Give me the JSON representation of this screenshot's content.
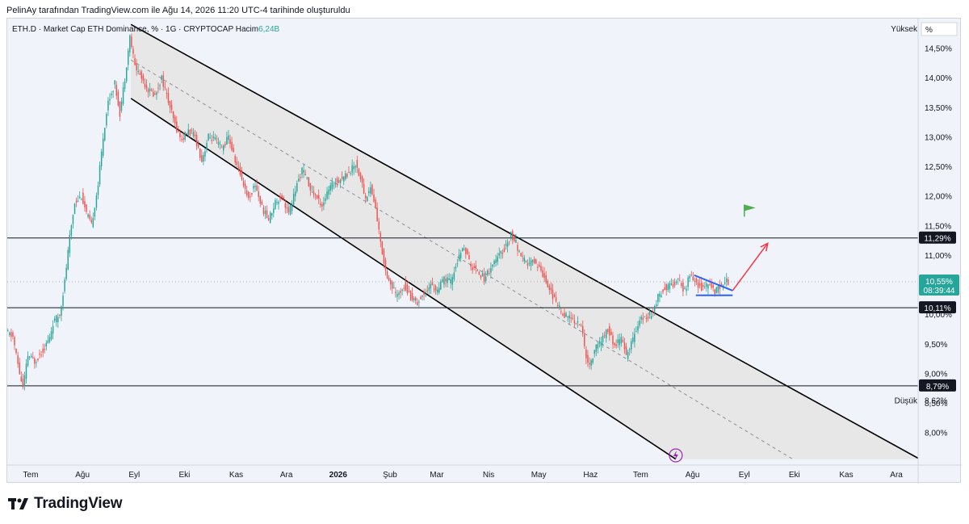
{
  "caption": "PelinAy tarafından TradingView.com ile Ağu 14, 2026 11:20 UTC-4 tarihinde oluşturuldu",
  "chart_data": {
    "type": "candlestick",
    "title": "ETH.D · Market Cap ETH Dominance, % · 1G · CRYPTOCAP",
    "volume_label": "Hacim",
    "volume_value": "6,24B",
    "scale_label": "Yüksek",
    "scale_unit": "%",
    "ylim": [
      7.45,
      15.0
    ],
    "y_ticks": [
      {
        "v": 14.5,
        "label": "14,50%"
      },
      {
        "v": 14.0,
        "label": "14,00%"
      },
      {
        "v": 13.5,
        "label": "13,50%"
      },
      {
        "v": 13.0,
        "label": "13,00%"
      },
      {
        "v": 12.5,
        "label": "12,50%"
      },
      {
        "v": 12.0,
        "label": "12,00%"
      },
      {
        "v": 11.5,
        "label": "11,50%"
      },
      {
        "v": 11.0,
        "label": "11,00%"
      },
      {
        "v": 10.0,
        "label": "10,00%"
      },
      {
        "v": 9.5,
        "label": "9,50%"
      },
      {
        "v": 9.0,
        "label": "9,00%"
      },
      {
        "v": 8.5,
        "label": "8,50%"
      },
      {
        "v": 8.0,
        "label": "8,00%"
      }
    ],
    "x_ticks": [
      {
        "d": 14,
        "label": "Tem"
      },
      {
        "d": 45,
        "label": "Ağu"
      },
      {
        "d": 76,
        "label": "Eyl"
      },
      {
        "d": 106,
        "label": "Eki"
      },
      {
        "d": 137,
        "label": "Kas"
      },
      {
        "d": 167,
        "label": "Ara"
      },
      {
        "d": 198,
        "label": "2026"
      },
      {
        "d": 229,
        "label": "Şub"
      },
      {
        "d": 257,
        "label": "Mar"
      },
      {
        "d": 288,
        "label": "Nis"
      },
      {
        "d": 318,
        "label": "May"
      },
      {
        "d": 349,
        "label": "Haz"
      },
      {
        "d": 379,
        "label": "Tem"
      },
      {
        "d": 410,
        "label": "Ağu"
      },
      {
        "d": 441,
        "label": "Eyl"
      },
      {
        "d": 471,
        "label": "Eki"
      },
      {
        "d": 502,
        "label": "Kas"
      },
      {
        "d": 532,
        "label": "Ara"
      }
    ],
    "x_range_days": [
      0,
      545
    ],
    "horizontal_levels": [
      {
        "v": 11.29,
        "label": "11,29%"
      },
      {
        "v": 10.11,
        "label": "10,11%"
      },
      {
        "v": 8.79,
        "label": "8,79%"
      }
    ],
    "low_label": "Düşük",
    "low_value": "8,62%",
    "current": {
      "v": 10.55,
      "label": "10,55%",
      "countdown": "08:39:44"
    },
    "channel": {
      "upper": [
        [
          74,
          14.9
        ],
        [
          546,
          7.55
        ]
      ],
      "lower": [
        [
          74,
          13.65
        ],
        [
          400,
          7.55
        ]
      ],
      "mid": [
        [
          74,
          14.3
        ],
        [
          470,
          7.55
        ]
      ]
    },
    "pattern_lines": [
      {
        "color": "#2962ff",
        "points": [
          [
            411,
            10.66
          ],
          [
            434,
            10.4
          ]
        ]
      },
      {
        "color": "#2962ff",
        "points": [
          [
            412,
            10.32
          ],
          [
            434,
            10.32
          ]
        ]
      }
    ],
    "projection_arrow": {
      "color": "#f23645",
      "from": [
        434,
        10.4
      ],
      "to": [
        455,
        11.2
      ]
    },
    "flag_marker": {
      "color": "#4caf50",
      "at": [
        441,
        11.65
      ]
    },
    "waypoints": [
      [
        0,
        9.7
      ],
      [
        4,
        9.62
      ],
      [
        8,
        9.0
      ],
      [
        10,
        8.75
      ],
      [
        13,
        9.3
      ],
      [
        17,
        9.2
      ],
      [
        22,
        9.4
      ],
      [
        26,
        9.6
      ],
      [
        28,
        9.85
      ],
      [
        32,
        10.0
      ],
      [
        35,
        10.55
      ],
      [
        38,
        11.3
      ],
      [
        41,
        11.9
      ],
      [
        45,
        12.0
      ],
      [
        48,
        11.7
      ],
      [
        51,
        11.5
      ],
      [
        55,
        12.2
      ],
      [
        58,
        13.0
      ],
      [
        61,
        13.6
      ],
      [
        65,
        13.9
      ],
      [
        68,
        13.4
      ],
      [
        71,
        14.0
      ],
      [
        74,
        14.7
      ],
      [
        77,
        14.2
      ],
      [
        81,
        14.0
      ],
      [
        85,
        13.8
      ],
      [
        89,
        13.7
      ],
      [
        93,
        14.0
      ],
      [
        97,
        13.6
      ],
      [
        101,
        13.2
      ],
      [
        105,
        12.95
      ],
      [
        109,
        13.1
      ],
      [
        113,
        13.0
      ],
      [
        117,
        12.6
      ],
      [
        121,
        13.0
      ],
      [
        125,
        12.95
      ],
      [
        129,
        12.8
      ],
      [
        133,
        13.0
      ],
      [
        137,
        12.6
      ],
      [
        141,
        12.3
      ],
      [
        145,
        11.95
      ],
      [
        149,
        12.2
      ],
      [
        153,
        11.8
      ],
      [
        157,
        11.6
      ],
      [
        161,
        11.9
      ],
      [
        165,
        12.0
      ],
      [
        169,
        11.7
      ],
      [
        173,
        12.1
      ],
      [
        177,
        12.45
      ],
      [
        181,
        12.2
      ],
      [
        185,
        12.0
      ],
      [
        189,
        11.85
      ],
      [
        193,
        12.1
      ],
      [
        197,
        12.25
      ],
      [
        201,
        12.3
      ],
      [
        205,
        12.4
      ],
      [
        209,
        12.55
      ],
      [
        212,
        12.3
      ],
      [
        215,
        11.95
      ],
      [
        218,
        12.15
      ],
      [
        221,
        11.8
      ],
      [
        224,
        11.2
      ],
      [
        227,
        10.75
      ],
      [
        230,
        10.5
      ],
      [
        234,
        10.3
      ],
      [
        238,
        10.5
      ],
      [
        242,
        10.3
      ],
      [
        246,
        10.2
      ],
      [
        250,
        10.35
      ],
      [
        254,
        10.5
      ],
      [
        258,
        10.4
      ],
      [
        262,
        10.6
      ],
      [
        266,
        10.55
      ],
      [
        270,
        10.9
      ],
      [
        274,
        11.15
      ],
      [
        278,
        10.8
      ],
      [
        282,
        10.75
      ],
      [
        286,
        10.6
      ],
      [
        290,
        10.8
      ],
      [
        294,
        10.95
      ],
      [
        298,
        11.1
      ],
      [
        302,
        11.35
      ],
      [
        305,
        11.2
      ],
      [
        308,
        10.95
      ],
      [
        312,
        10.85
      ],
      [
        316,
        10.9
      ],
      [
        320,
        10.75
      ],
      [
        324,
        10.5
      ],
      [
        328,
        10.25
      ],
      [
        332,
        10.05
      ],
      [
        336,
        9.95
      ],
      [
        340,
        9.9
      ],
      [
        344,
        9.8
      ],
      [
        347,
        9.3
      ],
      [
        349,
        9.1
      ],
      [
        352,
        9.4
      ],
      [
        356,
        9.55
      ],
      [
        360,
        9.75
      ],
      [
        364,
        9.45
      ],
      [
        368,
        9.6
      ],
      [
        371,
        9.3
      ],
      [
        374,
        9.5
      ],
      [
        378,
        9.85
      ],
      [
        382,
        9.95
      ],
      [
        386,
        10.0
      ],
      [
        390,
        10.3
      ],
      [
        394,
        10.45
      ],
      [
        398,
        10.5
      ],
      [
        402,
        10.55
      ],
      [
        406,
        10.4
      ],
      [
        409,
        10.65
      ],
      [
        412,
        10.55
      ],
      [
        416,
        10.45
      ],
      [
        420,
        10.5
      ],
      [
        424,
        10.4
      ],
      [
        428,
        10.5
      ],
      [
        431,
        10.55
      ]
    ]
  },
  "time_axis_icon": "lightning-icon",
  "footer": {
    "brand": "TradingView",
    "logo": "tradingview-logo-icon"
  },
  "colors": {
    "up": "#26a69a",
    "down": "#ef5350",
    "channel_fill": "#e5e5e5",
    "level": "#131722",
    "current": "#26a69a"
  }
}
